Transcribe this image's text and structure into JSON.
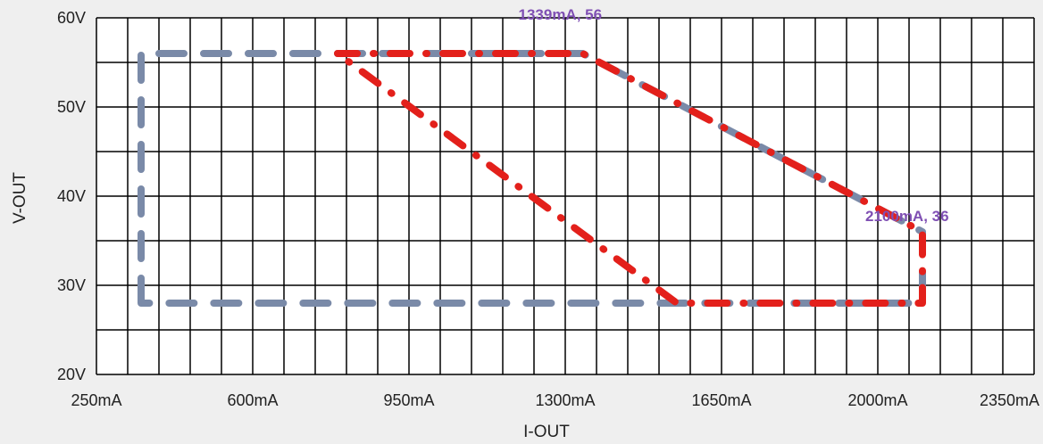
{
  "chart_data": {
    "type": "line",
    "title": "",
    "xlabel": "I-OUT",
    "ylabel": "V-OUT",
    "xlim": [
      250,
      2350
    ],
    "ylim": [
      20,
      60
    ],
    "x_major_ticks": [
      250,
      600,
      950,
      1300,
      1650,
      2000,
      2350
    ],
    "x_tick_labels": [
      "250mA",
      "600mA",
      "950mA",
      "1300mA",
      "1650mA",
      "2000mA",
      "2350mA"
    ],
    "y_major_ticks": [
      20,
      30,
      40,
      50,
      60
    ],
    "y_tick_labels": [
      "20V",
      "30V",
      "40V",
      "50V",
      "60V"
    ],
    "x_grid_step": 70,
    "y_grid_step": 5,
    "grid": true,
    "legend": "none",
    "plot_background": "#ffffff",
    "grid_color": "#000000",
    "series": [
      {
        "style": "dashed",
        "color": "#7a8aa8",
        "points": [
          [
            350,
            28
          ],
          [
            350,
            56
          ],
          [
            1339,
            56
          ],
          [
            2100,
            36
          ],
          [
            2100,
            28
          ],
          [
            350,
            28
          ]
        ]
      },
      {
        "style": "dash-dot",
        "color": "#e3201b",
        "points": [
          [
            790,
            56
          ],
          [
            1339,
            56
          ],
          [
            2100,
            36
          ],
          [
            2100,
            28
          ],
          [
            1550,
            28
          ],
          [
            790,
            56
          ]
        ]
      }
    ],
    "annotations": [
      {
        "text": "1339mA, 56",
        "x": 1339,
        "y": 56,
        "color": "#7f4fb3"
      },
      {
        "text": "2100mA, 36",
        "x": 2100,
        "y": 36,
        "color": "#7f4fb3"
      }
    ]
  }
}
